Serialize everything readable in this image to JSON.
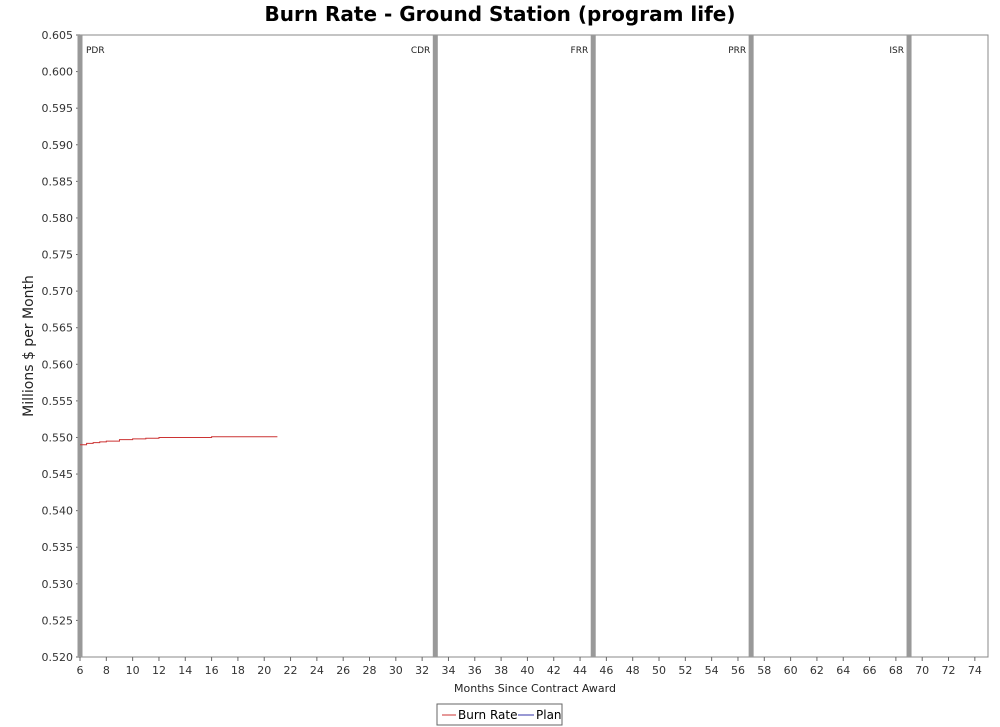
{
  "chart_data": {
    "type": "line",
    "title": "Burn Rate - Ground Station (program life)",
    "xlabel": "Months Since Contract Award",
    "ylabel": "Millions $ per Month",
    "xlim": [
      6,
      75
    ],
    "ylim": [
      0.52,
      0.605
    ],
    "x_ticks": [
      6,
      8,
      10,
      12,
      14,
      16,
      18,
      20,
      22,
      24,
      26,
      28,
      30,
      32,
      34,
      36,
      38,
      40,
      42,
      44,
      46,
      48,
      50,
      52,
      54,
      56,
      58,
      60,
      62,
      64,
      66,
      68,
      70,
      72,
      74
    ],
    "y_ticks": [
      0.52,
      0.525,
      0.53,
      0.535,
      0.54,
      0.545,
      0.55,
      0.555,
      0.56,
      0.565,
      0.57,
      0.575,
      0.58,
      0.585,
      0.59,
      0.595,
      0.6,
      0.605
    ],
    "y_tick_decimals": 3,
    "grid": false,
    "milestones": [
      {
        "label": "PDR",
        "x": 6
      },
      {
        "label": "CDR",
        "x": 33
      },
      {
        "label": "FRR",
        "x": 45
      },
      {
        "label": "PRR",
        "x": 57
      },
      {
        "label": "ISR",
        "x": 69
      }
    ],
    "series": [
      {
        "name": "Burn Rate",
        "color": "#cc3333",
        "step": true,
        "points": [
          [
            6,
            0.549
          ],
          [
            6.5,
            0.5492
          ],
          [
            7,
            0.5493
          ],
          [
            7.5,
            0.5494
          ],
          [
            8,
            0.5495
          ],
          [
            9,
            0.5497
          ],
          [
            10,
            0.5498
          ],
          [
            11,
            0.5499
          ],
          [
            12,
            0.55
          ],
          [
            13,
            0.55
          ],
          [
            14,
            0.55
          ],
          [
            15,
            0.55
          ],
          [
            16,
            0.5501
          ],
          [
            17,
            0.5501
          ],
          [
            18,
            0.5501
          ],
          [
            19,
            0.5501
          ],
          [
            20,
            0.5501
          ],
          [
            21,
            0.5501
          ]
        ]
      },
      {
        "name": "Plan",
        "color": "#3333aa",
        "points": []
      }
    ],
    "legend_position": "bottom-center"
  }
}
